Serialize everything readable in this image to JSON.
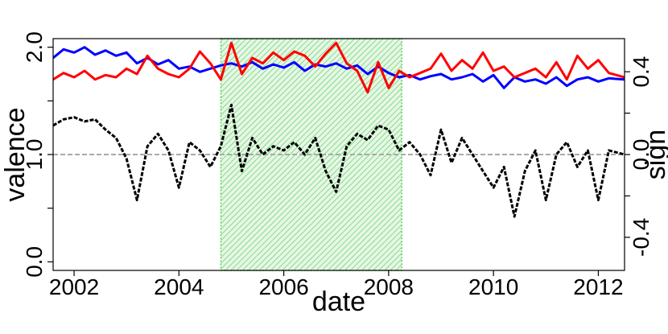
{
  "chart_data": {
    "type": "line",
    "xlabel": "date",
    "ylabel_left": "valence",
    "ylabel_right": "sign",
    "x_ticks": [
      "2002",
      "2004",
      "2006",
      "2008",
      "2010",
      "2012"
    ],
    "x_tick_values": [
      2002,
      2004,
      2006,
      2008,
      2010,
      2012
    ],
    "xlim": [
      2001.6,
      2012.5
    ],
    "y_left_ticks": [
      "0.0",
      "1.0",
      "2.0"
    ],
    "y_left_tick_values": [
      0.0,
      1.0,
      2.0
    ],
    "ylim_left": [
      -0.08,
      2.08
    ],
    "y_right_ticks": [
      "-0.4",
      "0.0",
      "0.4"
    ],
    "y_right_tick_values": [
      -0.4,
      0.0,
      0.4
    ],
    "ylim_right": [
      -0.56,
      0.56
    ],
    "reference_line": {
      "axis": "right",
      "value": 0.0,
      "color": "#aaaaaa",
      "style": "dashed"
    },
    "shaded_region": {
      "x_start": 2004.8,
      "x_end": 2008.25,
      "color": "#5ccf5c",
      "pattern": "hatched"
    },
    "series": [
      {
        "axis": "left",
        "color": "#0000ff",
        "style": "solid",
        "x": [
          2001.6,
          2001.8,
          2002.0,
          2002.2,
          2002.4,
          2002.6,
          2002.8,
          2003.0,
          2003.2,
          2003.4,
          2003.6,
          2003.8,
          2004.0,
          2004.2,
          2004.4,
          2004.6,
          2004.8,
          2005.0,
          2005.2,
          2005.4,
          2005.6,
          2005.8,
          2006.0,
          2006.2,
          2006.4,
          2006.6,
          2006.8,
          2007.0,
          2007.2,
          2007.4,
          2007.6,
          2007.8,
          2008.0,
          2008.2,
          2008.4,
          2008.6,
          2008.8,
          2009.0,
          2009.2,
          2009.4,
          2009.6,
          2009.8,
          2010.0,
          2010.2,
          2010.4,
          2010.6,
          2010.8,
          2011.0,
          2011.2,
          2011.4,
          2011.6,
          2011.8,
          2012.0,
          2012.2,
          2012.5
        ],
        "y": [
          1.9,
          1.98,
          1.95,
          2.0,
          1.93,
          1.97,
          1.92,
          1.95,
          1.85,
          1.9,
          1.84,
          1.88,
          1.8,
          1.82,
          1.77,
          1.8,
          1.83,
          1.85,
          1.82,
          1.86,
          1.8,
          1.84,
          1.81,
          1.86,
          1.78,
          1.84,
          1.82,
          1.85,
          1.8,
          1.83,
          1.75,
          1.82,
          1.76,
          1.72,
          1.74,
          1.7,
          1.73,
          1.75,
          1.7,
          1.72,
          1.75,
          1.68,
          1.74,
          1.62,
          1.72,
          1.68,
          1.7,
          1.66,
          1.72,
          1.64,
          1.7,
          1.72,
          1.68,
          1.71,
          1.7
        ]
      },
      {
        "axis": "left",
        "color": "#ff0000",
        "style": "solid",
        "x": [
          2001.6,
          2001.8,
          2002.0,
          2002.2,
          2002.4,
          2002.6,
          2002.8,
          2003.0,
          2003.2,
          2003.4,
          2003.6,
          2003.8,
          2004.0,
          2004.2,
          2004.4,
          2004.6,
          2004.8,
          2005.0,
          2005.2,
          2005.4,
          2005.6,
          2005.8,
          2006.0,
          2006.2,
          2006.4,
          2006.6,
          2006.8,
          2007.0,
          2007.2,
          2007.4,
          2007.6,
          2007.8,
          2008.0,
          2008.2,
          2008.4,
          2008.6,
          2008.8,
          2009.0,
          2009.2,
          2009.4,
          2009.6,
          2009.8,
          2010.0,
          2010.2,
          2010.4,
          2010.6,
          2010.8,
          2011.0,
          2011.2,
          2011.4,
          2011.6,
          2011.8,
          2012.0,
          2012.2,
          2012.5
        ],
        "y": [
          1.7,
          1.76,
          1.72,
          1.78,
          1.7,
          1.74,
          1.72,
          1.8,
          1.75,
          1.92,
          1.8,
          1.75,
          1.72,
          1.8,
          1.96,
          1.85,
          1.7,
          2.04,
          1.75,
          1.9,
          1.85,
          1.95,
          1.88,
          1.96,
          1.92,
          1.82,
          1.94,
          2.04,
          1.85,
          1.78,
          1.58,
          1.86,
          1.62,
          1.78,
          1.72,
          1.76,
          1.8,
          1.94,
          1.78,
          1.88,
          1.8,
          1.95,
          1.78,
          1.82,
          1.72,
          1.76,
          1.8,
          1.72,
          1.86,
          1.7,
          1.92,
          1.8,
          1.88,
          1.76,
          1.72
        ]
      },
      {
        "axis": "right",
        "color": "#000000",
        "style": "dashed",
        "x": [
          2001.6,
          2001.8,
          2002.0,
          2002.2,
          2002.4,
          2002.6,
          2002.8,
          2003.0,
          2003.2,
          2003.4,
          2003.6,
          2003.8,
          2004.0,
          2004.2,
          2004.4,
          2004.6,
          2004.8,
          2005.0,
          2005.2,
          2005.4,
          2005.6,
          2005.8,
          2006.0,
          2006.2,
          2006.4,
          2006.6,
          2006.8,
          2007.0,
          2007.2,
          2007.4,
          2007.6,
          2007.8,
          2008.0,
          2008.2,
          2008.4,
          2008.6,
          2008.8,
          2009.0,
          2009.2,
          2009.4,
          2009.6,
          2009.8,
          2010.0,
          2010.2,
          2010.4,
          2010.6,
          2010.8,
          2011.0,
          2011.2,
          2011.4,
          2011.6,
          2011.8,
          2012.0,
          2012.2,
          2012.5
        ],
        "y": [
          0.14,
          0.17,
          0.18,
          0.16,
          0.17,
          0.12,
          0.08,
          -0.02,
          -0.22,
          0.04,
          0.1,
          0.02,
          -0.16,
          0.06,
          0.02,
          -0.06,
          0.04,
          0.24,
          -0.08,
          0.08,
          0.0,
          0.04,
          0.02,
          0.06,
          0.0,
          0.08,
          -0.08,
          -0.18,
          0.04,
          0.1,
          0.07,
          0.14,
          0.12,
          0.02,
          0.06,
          0.0,
          -0.1,
          0.12,
          -0.04,
          0.08,
          0.0,
          -0.08,
          -0.16,
          -0.06,
          -0.3,
          -0.08,
          0.02,
          -0.22,
          0.0,
          0.06,
          -0.06,
          0.02,
          -0.22,
          0.02,
          0.0
        ]
      }
    ]
  }
}
